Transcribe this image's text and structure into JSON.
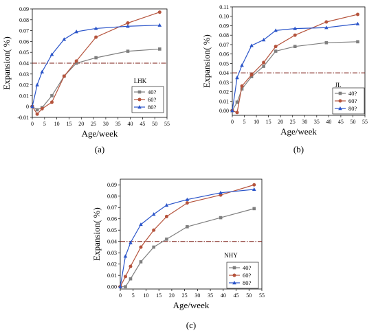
{
  "chart_data": [
    {
      "type": "line",
      "panel_label": "(a)",
      "annotation": "LHK",
      "xlabel": "Age/week",
      "ylabel": "Expansion(   %)",
      "xlim": [
        0,
        55
      ],
      "ylim": [
        -0.01,
        0.09
      ],
      "xticks": [
        0,
        5,
        10,
        15,
        20,
        25,
        30,
        35,
        40,
        45,
        50,
        55
      ],
      "yticks": [
        -0.01,
        0.0,
        0.01,
        0.02,
        0.03,
        0.04,
        0.05,
        0.06,
        0.07,
        0.08,
        0.09
      ],
      "ytick_labels": [
        "-0.01",
        "0",
        "0.01",
        "0.02",
        "0.03",
        "0.04",
        "0.05",
        "0.06",
        "0.07",
        "0.08",
        "0.09"
      ],
      "threshold": 0.04,
      "legend_position": "bottom-right",
      "series": [
        {
          "name": "40?",
          "color": "#7f7f7f",
          "marker": "square",
          "x": [
            0,
            2,
            4,
            8,
            13,
            18,
            26,
            39,
            52
          ],
          "y": [
            0.0,
            -0.003,
            -0.001,
            0.01,
            0.028,
            0.04,
            0.045,
            0.051,
            0.053
          ]
        },
        {
          "name": "60?",
          "color": "#b5533c",
          "marker": "circle",
          "x": [
            0,
            2,
            4,
            8,
            13,
            18,
            26,
            39,
            52
          ],
          "y": [
            0.0,
            -0.007,
            -0.002,
            0.004,
            0.028,
            0.042,
            0.064,
            0.077,
            0.087
          ]
        },
        {
          "name": "80?",
          "color": "#2a54c9",
          "marker": "triangle",
          "x": [
            0,
            2,
            4,
            8,
            13,
            18,
            26,
            39,
            52
          ],
          "y": [
            0.0,
            0.02,
            0.032,
            0.048,
            0.062,
            0.069,
            0.072,
            0.074,
            0.075
          ]
        }
      ]
    },
    {
      "type": "line",
      "panel_label": "(b)",
      "annotation": "JL",
      "xlabel": "Age/week",
      "ylabel": "Expansion(   %)",
      "xlim": [
        0,
        55
      ],
      "ylim": [
        -0.005,
        0.11
      ],
      "xticks": [
        0,
        5,
        10,
        15,
        20,
        25,
        30,
        35,
        40,
        45,
        50,
        55
      ],
      "yticks": [
        0.0,
        0.01,
        0.02,
        0.03,
        0.04,
        0.05,
        0.06,
        0.07,
        0.08,
        0.09,
        0.1,
        0.11
      ],
      "ytick_labels": [
        "0.00",
        "0.01",
        "0.02",
        "0.03",
        "0.04",
        "0.05",
        "0.06",
        "0.07",
        "0.08",
        "0.09",
        "0.10",
        "0.11"
      ],
      "threshold": 0.04,
      "legend_position": "bottom-right",
      "series": [
        {
          "name": "40?",
          "color": "#7f7f7f",
          "marker": "square",
          "x": [
            0,
            2,
            4,
            8,
            13,
            18,
            26,
            39,
            52
          ],
          "y": [
            0.0,
            0.009,
            0.023,
            0.036,
            0.047,
            0.063,
            0.068,
            0.072,
            0.073
          ]
        },
        {
          "name": "60?",
          "color": "#b5533c",
          "marker": "circle",
          "x": [
            0,
            2,
            4,
            8,
            13,
            18,
            26,
            39,
            52
          ],
          "y": [
            0.0,
            -0.002,
            0.026,
            0.038,
            0.051,
            0.068,
            0.08,
            0.094,
            0.102
          ]
        },
        {
          "name": "80?",
          "color": "#2a54c9",
          "marker": "triangle",
          "x": [
            0,
            2,
            4,
            8,
            13,
            18,
            26,
            39,
            52
          ],
          "y": [
            0.0,
            0.035,
            0.048,
            0.069,
            0.075,
            0.085,
            0.087,
            0.088,
            0.092
          ]
        }
      ]
    },
    {
      "type": "line",
      "panel_label": "(c)",
      "annotation": "NHY",
      "xlabel": "Age/week",
      "ylabel": "Expansion(   %)",
      "xlim": [
        0,
        55
      ],
      "ylim": [
        -0.002,
        0.095
      ],
      "xticks": [
        0,
        5,
        10,
        15,
        20,
        25,
        30,
        35,
        40,
        45,
        50,
        55
      ],
      "yticks": [
        0.0,
        0.01,
        0.02,
        0.03,
        0.04,
        0.05,
        0.06,
        0.07,
        0.08,
        0.09
      ],
      "ytick_labels": [
        "0.00",
        "0.01",
        "0.02",
        "0.03",
        "0.04",
        "0.05",
        "0.06",
        "0.07",
        "0.08",
        "0.09"
      ],
      "threshold": 0.04,
      "legend_position": "bottom-right",
      "series": [
        {
          "name": "40?",
          "color": "#7f7f7f",
          "marker": "square",
          "x": [
            0,
            2,
            4,
            8,
            13,
            18,
            26,
            39,
            52
          ],
          "y": [
            0.0,
            0.0,
            0.007,
            0.022,
            0.035,
            0.042,
            0.053,
            0.061,
            0.069
          ]
        },
        {
          "name": "60?",
          "color": "#b5533c",
          "marker": "circle",
          "x": [
            0,
            2,
            4,
            8,
            13,
            18,
            26,
            39,
            52
          ],
          "y": [
            0.0,
            0.009,
            0.018,
            0.035,
            0.05,
            0.062,
            0.074,
            0.081,
            0.09
          ]
        },
        {
          "name": "80?",
          "color": "#2a54c9",
          "marker": "triangle",
          "x": [
            0,
            2,
            4,
            8,
            13,
            18,
            26,
            39,
            52
          ],
          "y": [
            0.0,
            0.027,
            0.039,
            0.055,
            0.064,
            0.072,
            0.077,
            0.083,
            0.086
          ]
        }
      ]
    }
  ]
}
